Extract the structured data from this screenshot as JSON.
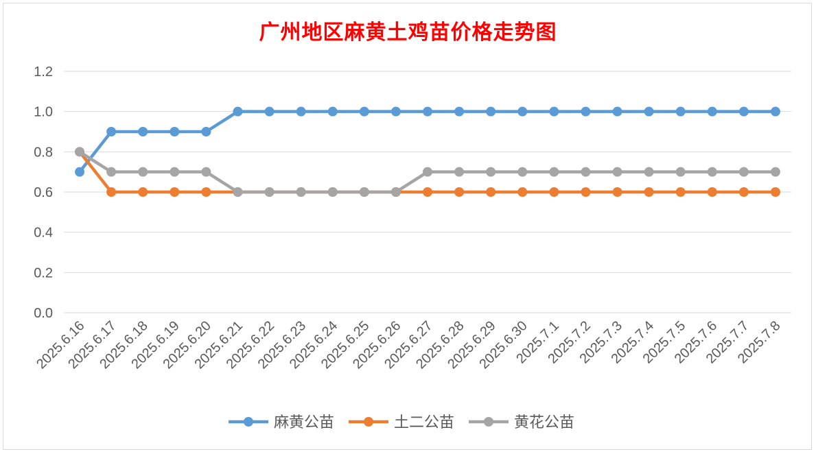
{
  "chart_data": {
    "type": "line",
    "title": "广州地区麻黄土鸡苗价格走势图",
    "xlabel": "",
    "ylabel": "",
    "categories": [
      "2025.6.16",
      "2025.6.17",
      "2025.6.18",
      "2025.6.19",
      "2025.6.20",
      "2025.6.21",
      "2025.6.22",
      "2025.6.23",
      "2025.6.24",
      "2025.6.25",
      "2025.6.26",
      "2025.6.27",
      "2025.6.28",
      "2025.6.29",
      "2025.6.30",
      "2025.7.1",
      "2025.7.2",
      "2025.7.3",
      "2025.7.4",
      "2025.7.5",
      "2025.7.6",
      "2025.7.7",
      "2025.7.8"
    ],
    "ylim": [
      0,
      1.2
    ],
    "yticks": [
      "0.0",
      "0.2",
      "0.4",
      "0.6",
      "0.8",
      "1.0",
      "1.2"
    ],
    "grid": true,
    "legend": "bottom",
    "series": [
      {
        "name": "麻黄公苗",
        "color": "#5b9bd5",
        "values": [
          0.7,
          0.9,
          0.9,
          0.9,
          0.9,
          1.0,
          1.0,
          1.0,
          1.0,
          1.0,
          1.0,
          1.0,
          1.0,
          1.0,
          1.0,
          1.0,
          1.0,
          1.0,
          1.0,
          1.0,
          1.0,
          1.0,
          1.0
        ]
      },
      {
        "name": "土二公苗",
        "color": "#ed7d31",
        "values": [
          0.8,
          0.6,
          0.6,
          0.6,
          0.6,
          0.6,
          0.6,
          0.6,
          0.6,
          0.6,
          0.6,
          0.6,
          0.6,
          0.6,
          0.6,
          0.6,
          0.6,
          0.6,
          0.6,
          0.6,
          0.6,
          0.6,
          0.6
        ]
      },
      {
        "name": "黄花公苗",
        "color": "#a5a5a5",
        "values": [
          0.8,
          0.7,
          0.7,
          0.7,
          0.7,
          0.6,
          0.6,
          0.6,
          0.6,
          0.6,
          0.6,
          0.7,
          0.7,
          0.7,
          0.7,
          0.7,
          0.7,
          0.7,
          0.7,
          0.7,
          0.7,
          0.7,
          0.7
        ]
      }
    ]
  }
}
